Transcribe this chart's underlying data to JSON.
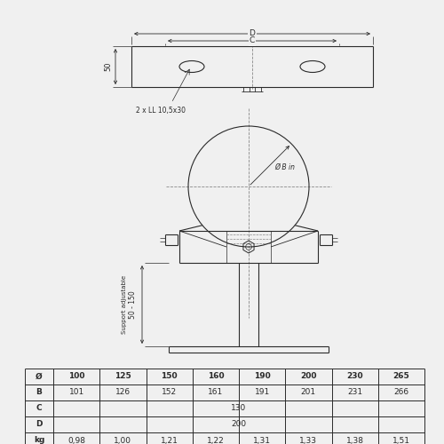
{
  "bg_color": "#f0f0f0",
  "line_color": "#2a2a2a",
  "dash_color": "#888888",
  "table_data": {
    "headers": [
      "Ø",
      "100",
      "125",
      "150",
      "160",
      "190",
      "200",
      "230",
      "265"
    ],
    "rows": [
      [
        "B",
        "101",
        "126",
        "152",
        "161",
        "191",
        "201",
        "231",
        "266"
      ],
      [
        "C",
        "130"
      ],
      [
        "D",
        "200"
      ],
      [
        "kg",
        "0,98",
        "1,00",
        "1,21",
        "1,22",
        "1,31",
        "1,33",
        "1,38",
        "1,51"
      ]
    ]
  },
  "dim_slot": "2 x LL 10,5x30",
  "dim_B_in": "Ø B in",
  "dim_50_150": "50 - 150",
  "dim_support": "Support adjustable"
}
